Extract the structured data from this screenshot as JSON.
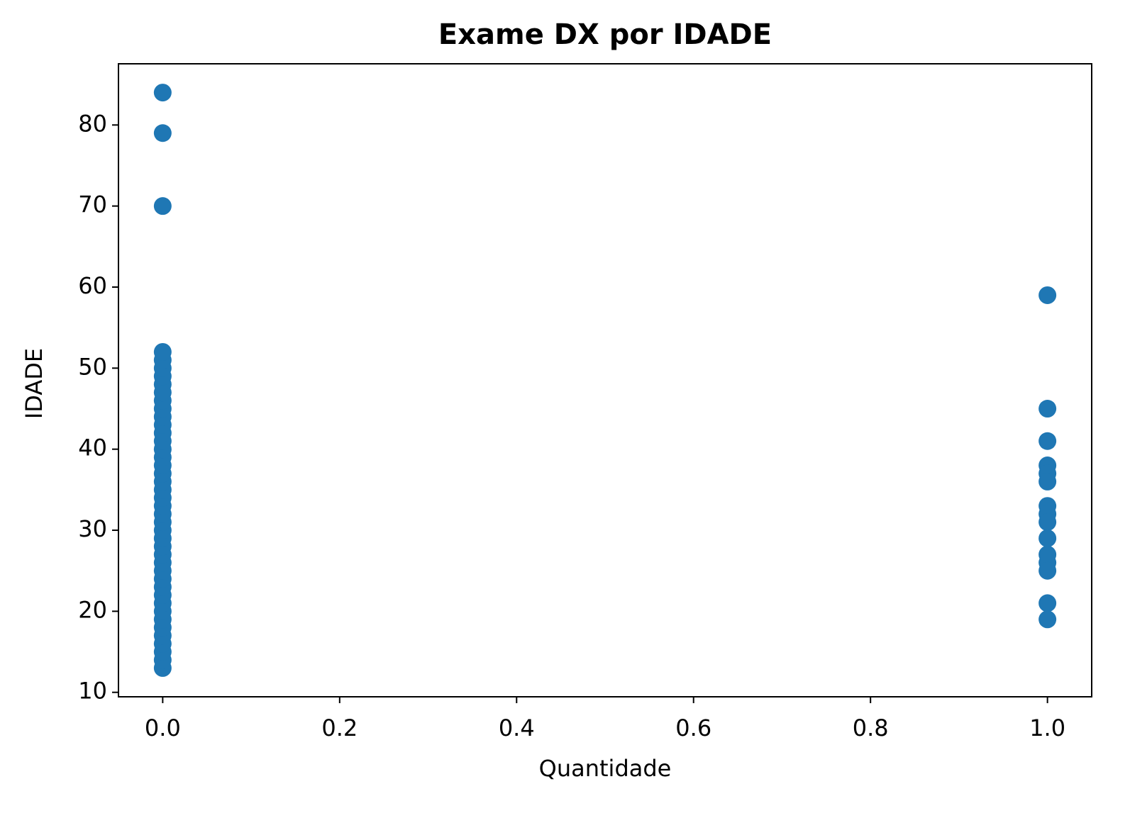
{
  "chart_data": {
    "type": "scatter",
    "title": "Exame DX por IDADE",
    "xlabel": "Quantidade",
    "ylabel": "IDADE",
    "color": "#1f77b4",
    "x": [
      0,
      0,
      0,
      0,
      0,
      0,
      0,
      0,
      0,
      0,
      0,
      0,
      0,
      0,
      0,
      0,
      0,
      0,
      0,
      0,
      0,
      0,
      0,
      0,
      0,
      0,
      0,
      0,
      0,
      0,
      0,
      0,
      0,
      0,
      0,
      0,
      0,
      0,
      0,
      0,
      0,
      0,
      0,
      1,
      1,
      1,
      1,
      1,
      1,
      1,
      1,
      1,
      1,
      1,
      1,
      1,
      1,
      1
    ],
    "values": [
      13,
      14,
      15,
      16,
      17,
      18,
      19,
      20,
      21,
      22,
      23,
      24,
      25,
      26,
      27,
      28,
      29,
      30,
      31,
      32,
      33,
      34,
      35,
      36,
      37,
      38,
      39,
      40,
      41,
      42,
      43,
      44,
      45,
      46,
      47,
      48,
      49,
      50,
      51,
      52,
      70,
      79,
      84,
      59,
      45,
      41,
      38,
      37,
      36,
      33,
      32,
      31,
      29,
      27,
      26,
      25,
      21,
      19
    ],
    "xlim": [
      -0.05,
      1.05
    ],
    "ylim": [
      9.45,
      87.55
    ],
    "xticks": [
      {
        "value": 0,
        "label": "0.0"
      },
      0.2,
      0.4,
      0.6,
      0.8,
      {
        "value": 1,
        "label": "1.0"
      }
    ],
    "yticks": [
      10,
      20,
      30,
      40,
      50,
      60,
      70,
      80
    ]
  }
}
